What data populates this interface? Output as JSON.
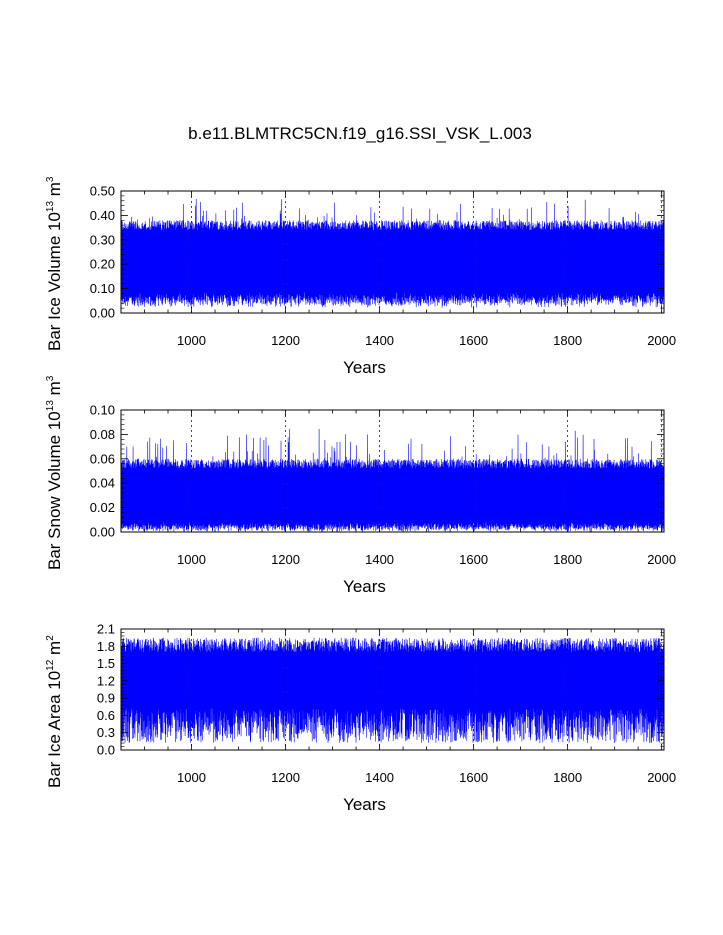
{
  "title": "b.e11.BLMTRC5CN.f19_g16.SSI_VSK_L.003",
  "series_color": "#0000ff",
  "chart_data": [
    {
      "type": "line",
      "name": "bar-ice-volume",
      "ylabel": "Bar Ice Volume 10",
      "ylabel_exp": "13",
      "ylabel_unit": "m",
      "ylabel_unit_exp": "3",
      "xlabel": "Years",
      "xlim": [
        850,
        2005
      ],
      "ylim": [
        0,
        0.5
      ],
      "x_ticks": [
        1000,
        1200,
        1400,
        1600,
        1800,
        2000
      ],
      "x_tick_labels": [
        "1000",
        "1200",
        "1400",
        "1600",
        "1800",
        "2000"
      ],
      "y_ticks": [
        0,
        0.1,
        0.2,
        0.3,
        0.4,
        0.5
      ],
      "y_tick_labels": [
        "0.00",
        "0.10",
        "0.20",
        "0.30",
        "0.40",
        "0.50"
      ],
      "series_summary": {
        "mean": 0.19,
        "min": 0.02,
        "max": 0.47,
        "typical_range": [
          0.06,
          0.38
        ]
      },
      "grid_x": true
    },
    {
      "type": "line",
      "name": "bar-snow-volume",
      "ylabel": "Bar Snow Volume 10",
      "ylabel_exp": "13",
      "ylabel_unit": "m",
      "ylabel_unit_exp": "3",
      "xlabel": "Years",
      "xlim": [
        850,
        2005
      ],
      "ylim": [
        0,
        0.1
      ],
      "x_ticks": [
        1000,
        1200,
        1400,
        1600,
        1800,
        2000
      ],
      "x_tick_labels": [
        "1000",
        "1200",
        "1400",
        "1600",
        "1800",
        "2000"
      ],
      "y_ticks": [
        0,
        0.02,
        0.04,
        0.06,
        0.08,
        0.1
      ],
      "y_tick_labels": [
        "0.00",
        "0.02",
        "0.04",
        "0.06",
        "0.08",
        "0.10"
      ],
      "series_summary": {
        "mean": 0.025,
        "min": 0.0,
        "max": 0.086,
        "typical_range": [
          0.003,
          0.06
        ]
      },
      "grid_x": true
    },
    {
      "type": "line",
      "name": "bar-ice-area",
      "ylabel": "Bar Ice Area 10",
      "ylabel_exp": "12",
      "ylabel_unit": "m",
      "ylabel_unit_exp": "2",
      "xlabel": "Years",
      "xlim": [
        850,
        2005
      ],
      "ylim": [
        0,
        2.1
      ],
      "x_ticks": [
        1000,
        1200,
        1400,
        1600,
        1800,
        2000
      ],
      "x_tick_labels": [
        "1000",
        "1200",
        "1400",
        "1600",
        "1800",
        "2000"
      ],
      "y_ticks": [
        0,
        0.3,
        0.6,
        0.9,
        1.2,
        1.5,
        1.8,
        2.1
      ],
      "y_tick_labels": [
        "0.0",
        "0.3",
        "0.6",
        "0.9",
        "1.2",
        "1.5",
        "1.8",
        "2.1"
      ],
      "series_summary": {
        "mean": 1.15,
        "min": 0.05,
        "max": 2.05,
        "typical_range": [
          0.3,
          1.95
        ]
      },
      "grid_x": true
    }
  ]
}
